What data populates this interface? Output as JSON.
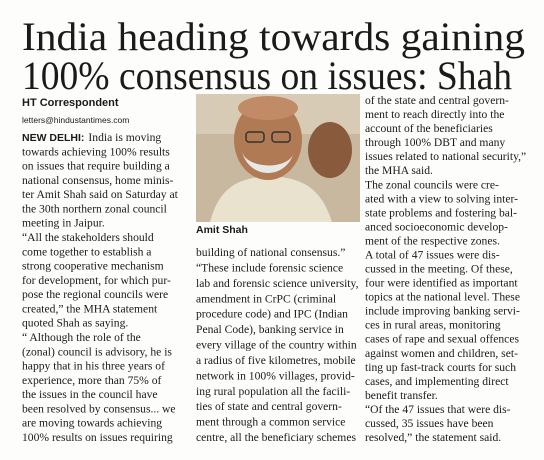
{
  "headline": [
    "India heading towards gaining",
    "100% consensus on issues: Shah"
  ],
  "byline": {
    "author": "HT Correspondent",
    "email": "letters@hindustantimes.com"
  },
  "dateline": "NEW DELHI:",
  "photo_caption": "Amit Shah",
  "columns": [
    [
      "India is moving",
      "towards achieving 100% results",
      "on issues that require building a",
      "national consensus, home minis-",
      "ter Amit Shah said on Saturday at",
      "the 30th northern zonal council",
      "meeting in Jaipur.",
      "“All the stakeholders should",
      "come together to establish a",
      "strong cooperative mechanism",
      "for development, for which pur-",
      "pose the regional councils were",
      "created,” the MHA statement",
      "quoted Shah as saying.",
      "“ Although the role of the",
      "(zonal) council is advisory, he is",
      "happy that in his three years of",
      "experience, more than 75% of",
      "the issues in the council have",
      "been resolved by consensus... we",
      "are moving towards achieving",
      "100% results on issues requiring"
    ],
    [
      "building of national consensus.”",
      "“These include forensic science",
      "lab and forensic science university,",
      "amendment in CrPC (criminal",
      "procedure code) and IPC (Indian",
      "Penal Code), banking service in",
      "every village of the country within",
      "a radius of five kilometres, mobile",
      "network in 100% villages, provid-",
      "ing rural population all the facili-",
      "ties of state and central govern-",
      "ment through a common service",
      "centre, all the beneficiary schemes"
    ],
    [
      "of the state and central govern-",
      "ment to reach directly into the",
      "account of the beneficiaries",
      "through 100% DBT and many",
      "issues related to national security,”",
      "the MHA said.",
      "The zonal councils were cre-",
      "ated with a view to solving inter-",
      "state problems and fostering bal-",
      "anced socioeconomic develop-",
      "ment of the respective zones.",
      "A total of 47 issues were dis-",
      "cussed in the meeting. Of these,",
      "four were identified as important",
      "topics at the national level. These",
      "include improving banking servi-",
      "ces in rural areas, monitoring",
      "cases of rape and sexual offences",
      "against women and children, set-",
      "ting up fast-track courts for such",
      "cases, and implementing direct",
      "benefit transfer.",
      "“Of the 47 issues that were dis-",
      "cussed, 35 issues have been",
      "resolved,” the statement said."
    ]
  ]
}
